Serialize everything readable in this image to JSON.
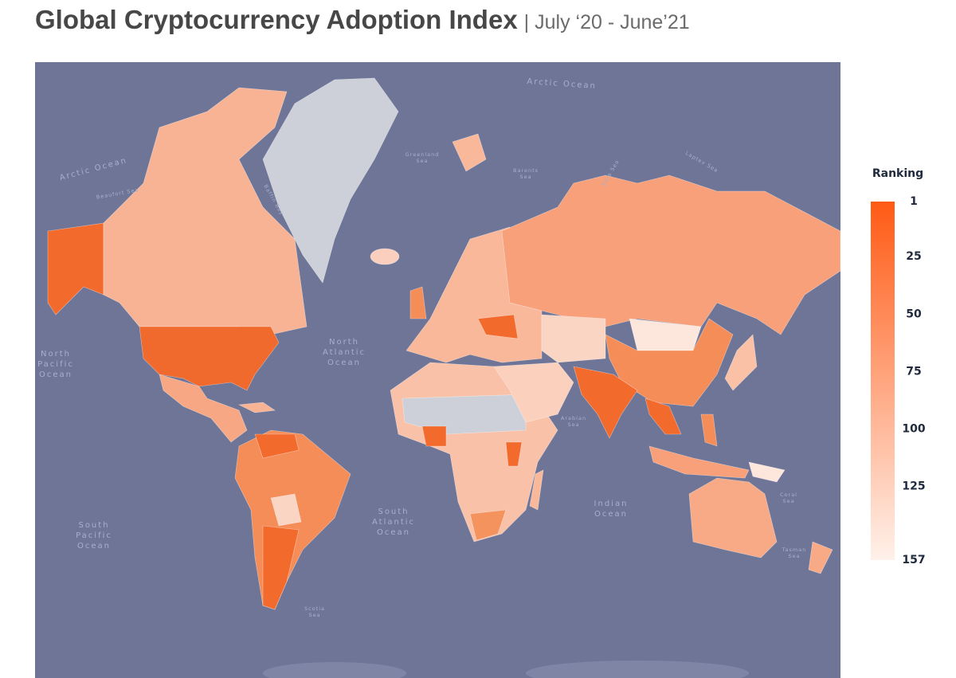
{
  "header": {
    "title": "Global Cryptocurrency Adoption Index",
    "subtitle": "| July ‘20 - June’21"
  },
  "legend": {
    "title": "Ranking",
    "range": [
      1,
      157
    ],
    "ticks": [
      1,
      25,
      50,
      75,
      100,
      125,
      157
    ],
    "colors": [
      "#ff5a14",
      "#fff1ea"
    ]
  },
  "map_labels": [
    {
      "lines": [
        "Arctic Ocean"
      ]
    },
    {
      "lines": [
        "Arctic Ocean"
      ]
    },
    {
      "lines": [
        "North",
        "Pacific",
        "Ocean"
      ]
    },
    {
      "lines": [
        "North",
        "Atlantic",
        "Ocean"
      ]
    },
    {
      "lines": [
        "South",
        "Atlantic",
        "Ocean"
      ]
    },
    {
      "lines": [
        "South",
        "Pacific",
        "Ocean"
      ]
    },
    {
      "lines": [
        "Indian",
        "Ocean"
      ]
    },
    {
      "lines": [
        "Greenland",
        "Sea"
      ]
    },
    {
      "lines": [
        "Barents",
        "Sea"
      ]
    },
    {
      "lines": [
        "Kara Sea"
      ]
    },
    {
      "lines": [
        "Laptev Sea"
      ]
    },
    {
      "lines": [
        "Beaufort Sea"
      ]
    },
    {
      "lines": [
        "Baffin Bay"
      ]
    },
    {
      "lines": [
        "Arabian",
        "Sea"
      ]
    },
    {
      "lines": [
        "Coral",
        "Sea"
      ]
    },
    {
      "lines": [
        "Tasman",
        "Sea"
      ]
    },
    {
      "lines": [
        "Scotia",
        "Sea"
      ]
    }
  ]
}
